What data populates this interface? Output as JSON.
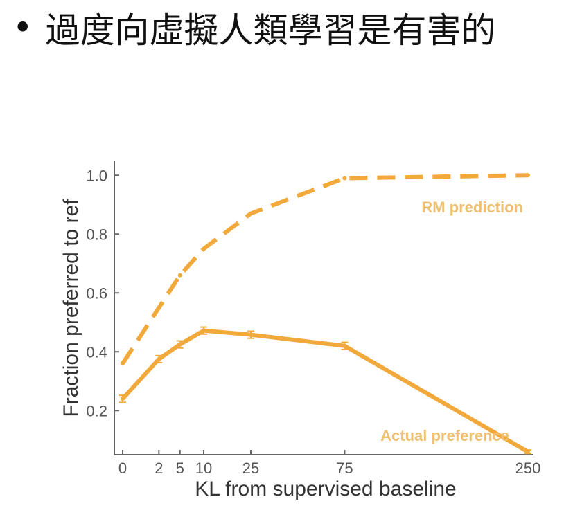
{
  "slide": {
    "bullet": "•",
    "title": "過度向虛擬人類學習是有害的"
  },
  "colors": {
    "series": "#f2a93b",
    "annotation": "#f0c072",
    "axis": "#666666"
  },
  "chart_data": {
    "type": "line",
    "title": "",
    "xlabel": "KL from supervised baseline",
    "ylabel": "Fraction preferred to ref",
    "x_scale": "sqrt",
    "x": [
      0,
      2,
      5,
      10,
      25,
      75,
      250
    ],
    "xticks": [
      0,
      2,
      5,
      10,
      25,
      75,
      250
    ],
    "xtick_labels": [
      "0",
      "2",
      "5",
      "10",
      "25",
      "75",
      "250"
    ],
    "yticks": [
      0.2,
      0.4,
      0.6,
      0.8,
      1.0
    ],
    "ytick_labels": [
      "0.2",
      "0.4",
      "0.6",
      "0.8",
      "1.0"
    ],
    "ylim": [
      0.05,
      1.05
    ],
    "grid": false,
    "series": [
      {
        "name": "RM prediction",
        "style": "dashed",
        "x": [
          0,
          2,
          5,
          10,
          25,
          75,
          250
        ],
        "values": [
          0.36,
          0.55,
          0.66,
          0.75,
          0.87,
          0.99,
          1.0
        ]
      },
      {
        "name": "Actual preference",
        "style": "solid",
        "x": [
          0,
          2,
          5,
          10,
          25,
          75,
          250
        ],
        "values": [
          0.24,
          0.375,
          0.425,
          0.472,
          0.458,
          0.42,
          0.06
        ],
        "error": [
          0.012,
          0.012,
          0.012,
          0.012,
          0.012,
          0.012,
          0.006
        ]
      }
    ]
  }
}
